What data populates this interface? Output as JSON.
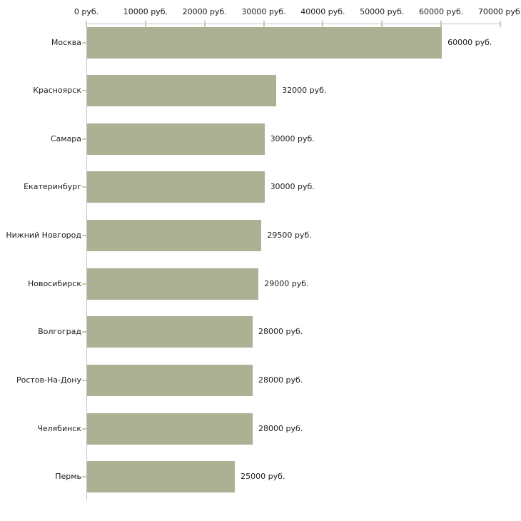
{
  "chart_data": {
    "type": "bar",
    "orientation": "horizontal",
    "title": "",
    "xlabel": "",
    "ylabel": "",
    "unit": "руб.",
    "xlim": [
      0,
      70000
    ],
    "grid": false,
    "legend": "none",
    "categories": [
      "Москва",
      "Красноярск",
      "Самара",
      "Екатеринбург",
      "Нижний Новгород",
      "Новосибирск",
      "Волгоград",
      "Ростов-На-Дону",
      "Челябинск",
      "Пермь"
    ],
    "values": [
      60000,
      32000,
      30000,
      30000,
      29500,
      29000,
      28000,
      28000,
      28000,
      25000
    ],
    "value_labels": [
      "60000 руб.",
      "32000 руб.",
      "30000 руб.",
      "30000 руб.",
      "29500 руб.",
      "29000 руб.",
      "28000 руб.",
      "28000 руб.",
      "28000 руб.",
      "25000 руб."
    ],
    "x_ticks": [
      {
        "value": 0,
        "label": "0 руб."
      },
      {
        "value": 10000,
        "label": "10000 руб."
      },
      {
        "value": 20000,
        "label": "20000 руб."
      },
      {
        "value": 30000,
        "label": "30000 руб."
      },
      {
        "value": 40000,
        "label": "40000 руб."
      },
      {
        "value": 50000,
        "label": "50000 руб."
      },
      {
        "value": 60000,
        "label": "60000 руб."
      },
      {
        "value": 70000,
        "label": "70000 руб."
      }
    ],
    "colors": {
      "bar": "#acb194",
      "axis": "#c4c4c4",
      "tick": "#cdc9a2",
      "text": "#1c1c1c",
      "background": "#ffffff"
    }
  }
}
